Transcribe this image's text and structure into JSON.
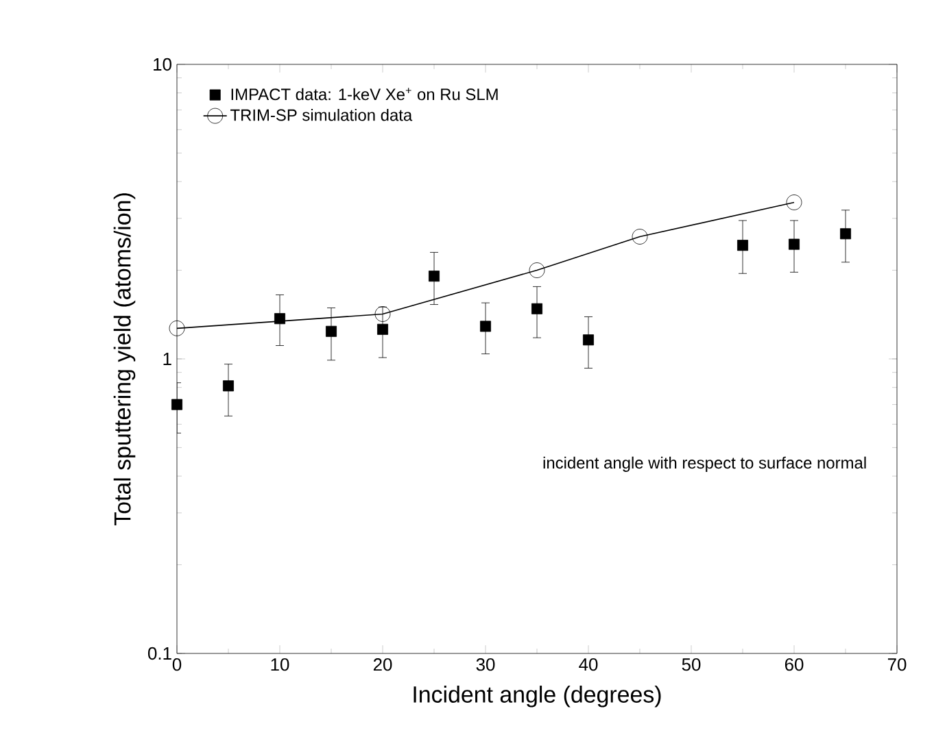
{
  "chart_data": {
    "type": "scatter",
    "xlabel": "Incident angle (degrees)",
    "ylabel": "Total sputtering yield (atoms/ion)",
    "annotations": [
      "incident angle with respect to surface normal"
    ],
    "series": [
      {
        "name": "IMPACT data: 1-keV Xe$^{+}$ on Ru SLM",
        "type": "scatter",
        "marker": "square",
        "color": "#000000",
        "x": [
          0,
          5,
          10,
          15,
          20,
          25,
          30,
          35,
          40,
          55,
          60,
          65
        ],
        "values": [
          0.7,
          0.81,
          1.37,
          1.24,
          1.26,
          1.91,
          1.29,
          1.48,
          1.16,
          2.43,
          2.45,
          2.66
        ],
        "errors": [
          [
            0.56,
            0.83
          ],
          [
            0.64,
            0.96
          ],
          [
            1.11,
            1.65
          ],
          [
            0.99,
            1.49
          ],
          [
            1.01,
            1.5
          ],
          [
            1.53,
            2.3
          ],
          [
            1.04,
            1.55
          ],
          [
            1.18,
            1.76
          ],
          [
            0.93,
            1.39
          ],
          [
            1.95,
            2.95
          ],
          [
            1.97,
            2.95
          ],
          [
            2.13,
            3.2
          ]
        ]
      },
      {
        "name": "TRIM-SP simulation data",
        "type": "line",
        "marker": "circle",
        "line_style": "solid",
        "color": "#000000",
        "x": [
          0,
          20,
          35,
          45,
          60
        ],
        "values": [
          1.27,
          1.42,
          2.0,
          2.6,
          3.4
        ]
      }
    ],
    "xlim": [
      0,
      70
    ],
    "xticks": [
      0,
      10,
      20,
      30,
      40,
      50,
      60,
      70
    ],
    "ylim": [
      0.1,
      10
    ],
    "yticks": [
      0.1,
      1,
      10
    ],
    "log": "y",
    "grid": false,
    "legend": "top left"
  }
}
